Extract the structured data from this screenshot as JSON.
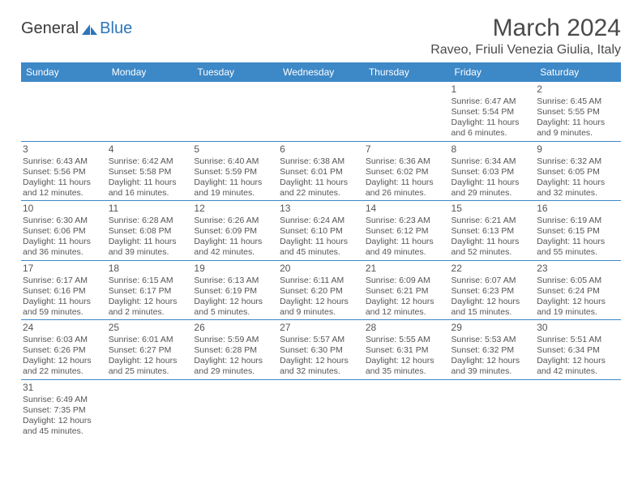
{
  "logo": {
    "general": "General",
    "blue": "Blue"
  },
  "title": "March 2024",
  "location": "Raveo, Friuli Venezia Giulia, Italy",
  "colors": {
    "header_bg": "#3d88c7",
    "header_fg": "#ffffff",
    "rule": "#3d88c7",
    "text": "#555555",
    "logo_blue": "#2d75bb"
  },
  "weekdays": [
    "Sunday",
    "Monday",
    "Tuesday",
    "Wednesday",
    "Thursday",
    "Friday",
    "Saturday"
  ],
  "weeks": [
    [
      null,
      null,
      null,
      null,
      null,
      {
        "n": "1",
        "sr": "Sunrise: 6:47 AM",
        "ss": "Sunset: 5:54 PM",
        "d1": "Daylight: 11 hours",
        "d2": "and 6 minutes."
      },
      {
        "n": "2",
        "sr": "Sunrise: 6:45 AM",
        "ss": "Sunset: 5:55 PM",
        "d1": "Daylight: 11 hours",
        "d2": "and 9 minutes."
      }
    ],
    [
      {
        "n": "3",
        "sr": "Sunrise: 6:43 AM",
        "ss": "Sunset: 5:56 PM",
        "d1": "Daylight: 11 hours",
        "d2": "and 12 minutes."
      },
      {
        "n": "4",
        "sr": "Sunrise: 6:42 AM",
        "ss": "Sunset: 5:58 PM",
        "d1": "Daylight: 11 hours",
        "d2": "and 16 minutes."
      },
      {
        "n": "5",
        "sr": "Sunrise: 6:40 AM",
        "ss": "Sunset: 5:59 PM",
        "d1": "Daylight: 11 hours",
        "d2": "and 19 minutes."
      },
      {
        "n": "6",
        "sr": "Sunrise: 6:38 AM",
        "ss": "Sunset: 6:01 PM",
        "d1": "Daylight: 11 hours",
        "d2": "and 22 minutes."
      },
      {
        "n": "7",
        "sr": "Sunrise: 6:36 AM",
        "ss": "Sunset: 6:02 PM",
        "d1": "Daylight: 11 hours",
        "d2": "and 26 minutes."
      },
      {
        "n": "8",
        "sr": "Sunrise: 6:34 AM",
        "ss": "Sunset: 6:03 PM",
        "d1": "Daylight: 11 hours",
        "d2": "and 29 minutes."
      },
      {
        "n": "9",
        "sr": "Sunrise: 6:32 AM",
        "ss": "Sunset: 6:05 PM",
        "d1": "Daylight: 11 hours",
        "d2": "and 32 minutes."
      }
    ],
    [
      {
        "n": "10",
        "sr": "Sunrise: 6:30 AM",
        "ss": "Sunset: 6:06 PM",
        "d1": "Daylight: 11 hours",
        "d2": "and 36 minutes."
      },
      {
        "n": "11",
        "sr": "Sunrise: 6:28 AM",
        "ss": "Sunset: 6:08 PM",
        "d1": "Daylight: 11 hours",
        "d2": "and 39 minutes."
      },
      {
        "n": "12",
        "sr": "Sunrise: 6:26 AM",
        "ss": "Sunset: 6:09 PM",
        "d1": "Daylight: 11 hours",
        "d2": "and 42 minutes."
      },
      {
        "n": "13",
        "sr": "Sunrise: 6:24 AM",
        "ss": "Sunset: 6:10 PM",
        "d1": "Daylight: 11 hours",
        "d2": "and 45 minutes."
      },
      {
        "n": "14",
        "sr": "Sunrise: 6:23 AM",
        "ss": "Sunset: 6:12 PM",
        "d1": "Daylight: 11 hours",
        "d2": "and 49 minutes."
      },
      {
        "n": "15",
        "sr": "Sunrise: 6:21 AM",
        "ss": "Sunset: 6:13 PM",
        "d1": "Daylight: 11 hours",
        "d2": "and 52 minutes."
      },
      {
        "n": "16",
        "sr": "Sunrise: 6:19 AM",
        "ss": "Sunset: 6:15 PM",
        "d1": "Daylight: 11 hours",
        "d2": "and 55 minutes."
      }
    ],
    [
      {
        "n": "17",
        "sr": "Sunrise: 6:17 AM",
        "ss": "Sunset: 6:16 PM",
        "d1": "Daylight: 11 hours",
        "d2": "and 59 minutes."
      },
      {
        "n": "18",
        "sr": "Sunrise: 6:15 AM",
        "ss": "Sunset: 6:17 PM",
        "d1": "Daylight: 12 hours",
        "d2": "and 2 minutes."
      },
      {
        "n": "19",
        "sr": "Sunrise: 6:13 AM",
        "ss": "Sunset: 6:19 PM",
        "d1": "Daylight: 12 hours",
        "d2": "and 5 minutes."
      },
      {
        "n": "20",
        "sr": "Sunrise: 6:11 AM",
        "ss": "Sunset: 6:20 PM",
        "d1": "Daylight: 12 hours",
        "d2": "and 9 minutes."
      },
      {
        "n": "21",
        "sr": "Sunrise: 6:09 AM",
        "ss": "Sunset: 6:21 PM",
        "d1": "Daylight: 12 hours",
        "d2": "and 12 minutes."
      },
      {
        "n": "22",
        "sr": "Sunrise: 6:07 AM",
        "ss": "Sunset: 6:23 PM",
        "d1": "Daylight: 12 hours",
        "d2": "and 15 minutes."
      },
      {
        "n": "23",
        "sr": "Sunrise: 6:05 AM",
        "ss": "Sunset: 6:24 PM",
        "d1": "Daylight: 12 hours",
        "d2": "and 19 minutes."
      }
    ],
    [
      {
        "n": "24",
        "sr": "Sunrise: 6:03 AM",
        "ss": "Sunset: 6:26 PM",
        "d1": "Daylight: 12 hours",
        "d2": "and 22 minutes."
      },
      {
        "n": "25",
        "sr": "Sunrise: 6:01 AM",
        "ss": "Sunset: 6:27 PM",
        "d1": "Daylight: 12 hours",
        "d2": "and 25 minutes."
      },
      {
        "n": "26",
        "sr": "Sunrise: 5:59 AM",
        "ss": "Sunset: 6:28 PM",
        "d1": "Daylight: 12 hours",
        "d2": "and 29 minutes."
      },
      {
        "n": "27",
        "sr": "Sunrise: 5:57 AM",
        "ss": "Sunset: 6:30 PM",
        "d1": "Daylight: 12 hours",
        "d2": "and 32 minutes."
      },
      {
        "n": "28",
        "sr": "Sunrise: 5:55 AM",
        "ss": "Sunset: 6:31 PM",
        "d1": "Daylight: 12 hours",
        "d2": "and 35 minutes."
      },
      {
        "n": "29",
        "sr": "Sunrise: 5:53 AM",
        "ss": "Sunset: 6:32 PM",
        "d1": "Daylight: 12 hours",
        "d2": "and 39 minutes."
      },
      {
        "n": "30",
        "sr": "Sunrise: 5:51 AM",
        "ss": "Sunset: 6:34 PM",
        "d1": "Daylight: 12 hours",
        "d2": "and 42 minutes."
      }
    ],
    [
      {
        "n": "31",
        "sr": "Sunrise: 6:49 AM",
        "ss": "Sunset: 7:35 PM",
        "d1": "Daylight: 12 hours",
        "d2": "and 45 minutes."
      },
      null,
      null,
      null,
      null,
      null,
      null
    ]
  ]
}
